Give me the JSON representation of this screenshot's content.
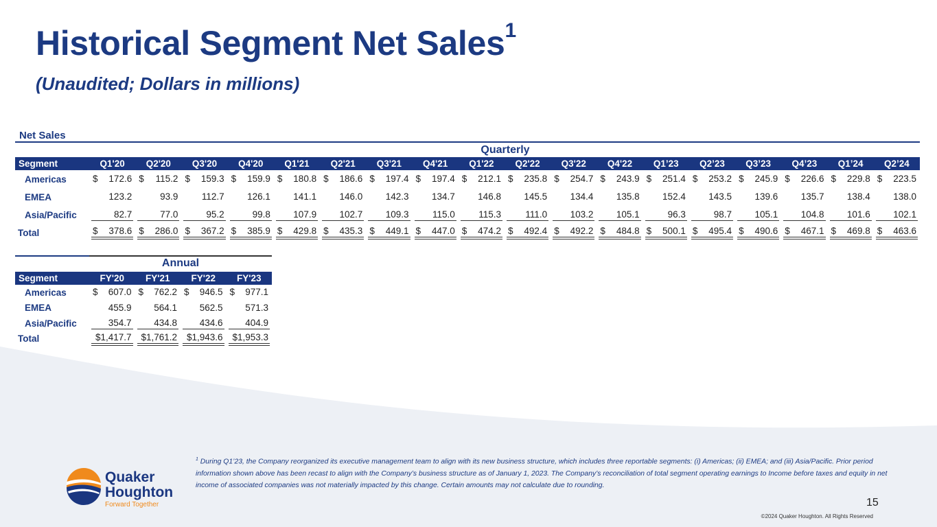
{
  "title": "Historical Segment Net Sales",
  "title_sup": "1",
  "subtitle": "(Unaudited; Dollars in millions)",
  "section": "Net Sales",
  "quarterly": {
    "group_label": "Quarterly",
    "segment_label": "Segment",
    "columns": [
      "Q1'20",
      "Q2'20",
      "Q3'20",
      "Q4'20",
      "Q1'21",
      "Q2'21",
      "Q3'21",
      "Q4'21",
      "Q1'22",
      "Q2'22",
      "Q3'22",
      "Q4'22",
      "Q1’23",
      "Q2’23",
      "Q3’23",
      "Q4’23",
      "Q1’24",
      "Q2’24"
    ],
    "rows": [
      {
        "segment": "Americas",
        "currency": "$",
        "values": [
          "172.6",
          "115.2",
          "159.3",
          "159.9",
          "180.8",
          "186.6",
          "197.4",
          "197.4",
          "212.1",
          "235.8",
          "254.7",
          "243.9",
          "251.4",
          "253.2",
          "245.9",
          "226.6",
          "229.8",
          "223.5"
        ]
      },
      {
        "segment": "EMEA",
        "currency": "",
        "values": [
          "123.2",
          "93.9",
          "112.7",
          "126.1",
          "141.1",
          "146.0",
          "142.3",
          "134.7",
          "146.8",
          "145.5",
          "134.4",
          "135.8",
          "152.4",
          "143.5",
          "139.6",
          "135.7",
          "138.4",
          "138.0"
        ]
      },
      {
        "segment": "Asia/Pacific",
        "currency": "",
        "values": [
          "82.7",
          "77.0",
          "95.2",
          "99.8",
          "107.9",
          "102.7",
          "109.3",
          "115.0",
          "115.3",
          "111.0",
          "103.2",
          "105.1",
          "96.3",
          "98.7",
          "105.1",
          "104.8",
          "101.6",
          "102.1"
        ]
      },
      {
        "segment": "Total",
        "currency": "$",
        "values": [
          "378.6",
          "286.0",
          "367.2",
          "385.9",
          "429.8",
          "435.3",
          "449.1",
          "447.0",
          "474.2",
          "492.4",
          "492.2",
          "484.8",
          "500.1",
          "495.4",
          "490.6",
          "467.1",
          "469.8",
          "463.6"
        ]
      }
    ]
  },
  "annual": {
    "group_label": "Annual",
    "segment_label": "Segment",
    "columns": [
      "FY'20",
      "FY'21",
      "FY'22",
      "FY'23"
    ],
    "rows": [
      {
        "segment": "Americas",
        "currency": "$",
        "values": [
          "607.0",
          "762.2",
          "946.5",
          "977.1"
        ]
      },
      {
        "segment": "EMEA",
        "currency": "",
        "values": [
          "455.9",
          "564.1",
          "562.5",
          "571.3"
        ]
      },
      {
        "segment": "Asia/Pacific",
        "currency": "",
        "values": [
          "354.7",
          "434.8",
          "434.6",
          "404.9"
        ]
      },
      {
        "segment": "Total",
        "currency": "",
        "values": [
          "$1,417.7",
          "$1,761.2",
          "$1,943.6",
          "$1,953.3"
        ]
      }
    ]
  },
  "footnote": {
    "mark": "1",
    "text": "During Q1’23, the Company reorganized its executive management team to align with its new business structure, which includes three reportable segments: (i) Americas; (ii) EMEA; and (iii) Asia/Pacific. Prior period information shown above has been recast to align with the Company’s business structure as of January 1, 2023. The Company’s reconciliation of total segment operating earnings to Income before taxes and equity in net income of associated companies was not materially impacted by this change. Certain amounts may not calculate due to rounding."
  },
  "page_number": "15",
  "copyright": "©2024 Quaker Houghton. All Rights Reserved",
  "logo": {
    "line1": "Quaker",
    "line2": "Houghton",
    "tagline": "Forward Together"
  },
  "colors": {
    "navy": "#1a3680",
    "orange": "#f08a1c",
    "background_swoosh": "#edf0f5"
  }
}
